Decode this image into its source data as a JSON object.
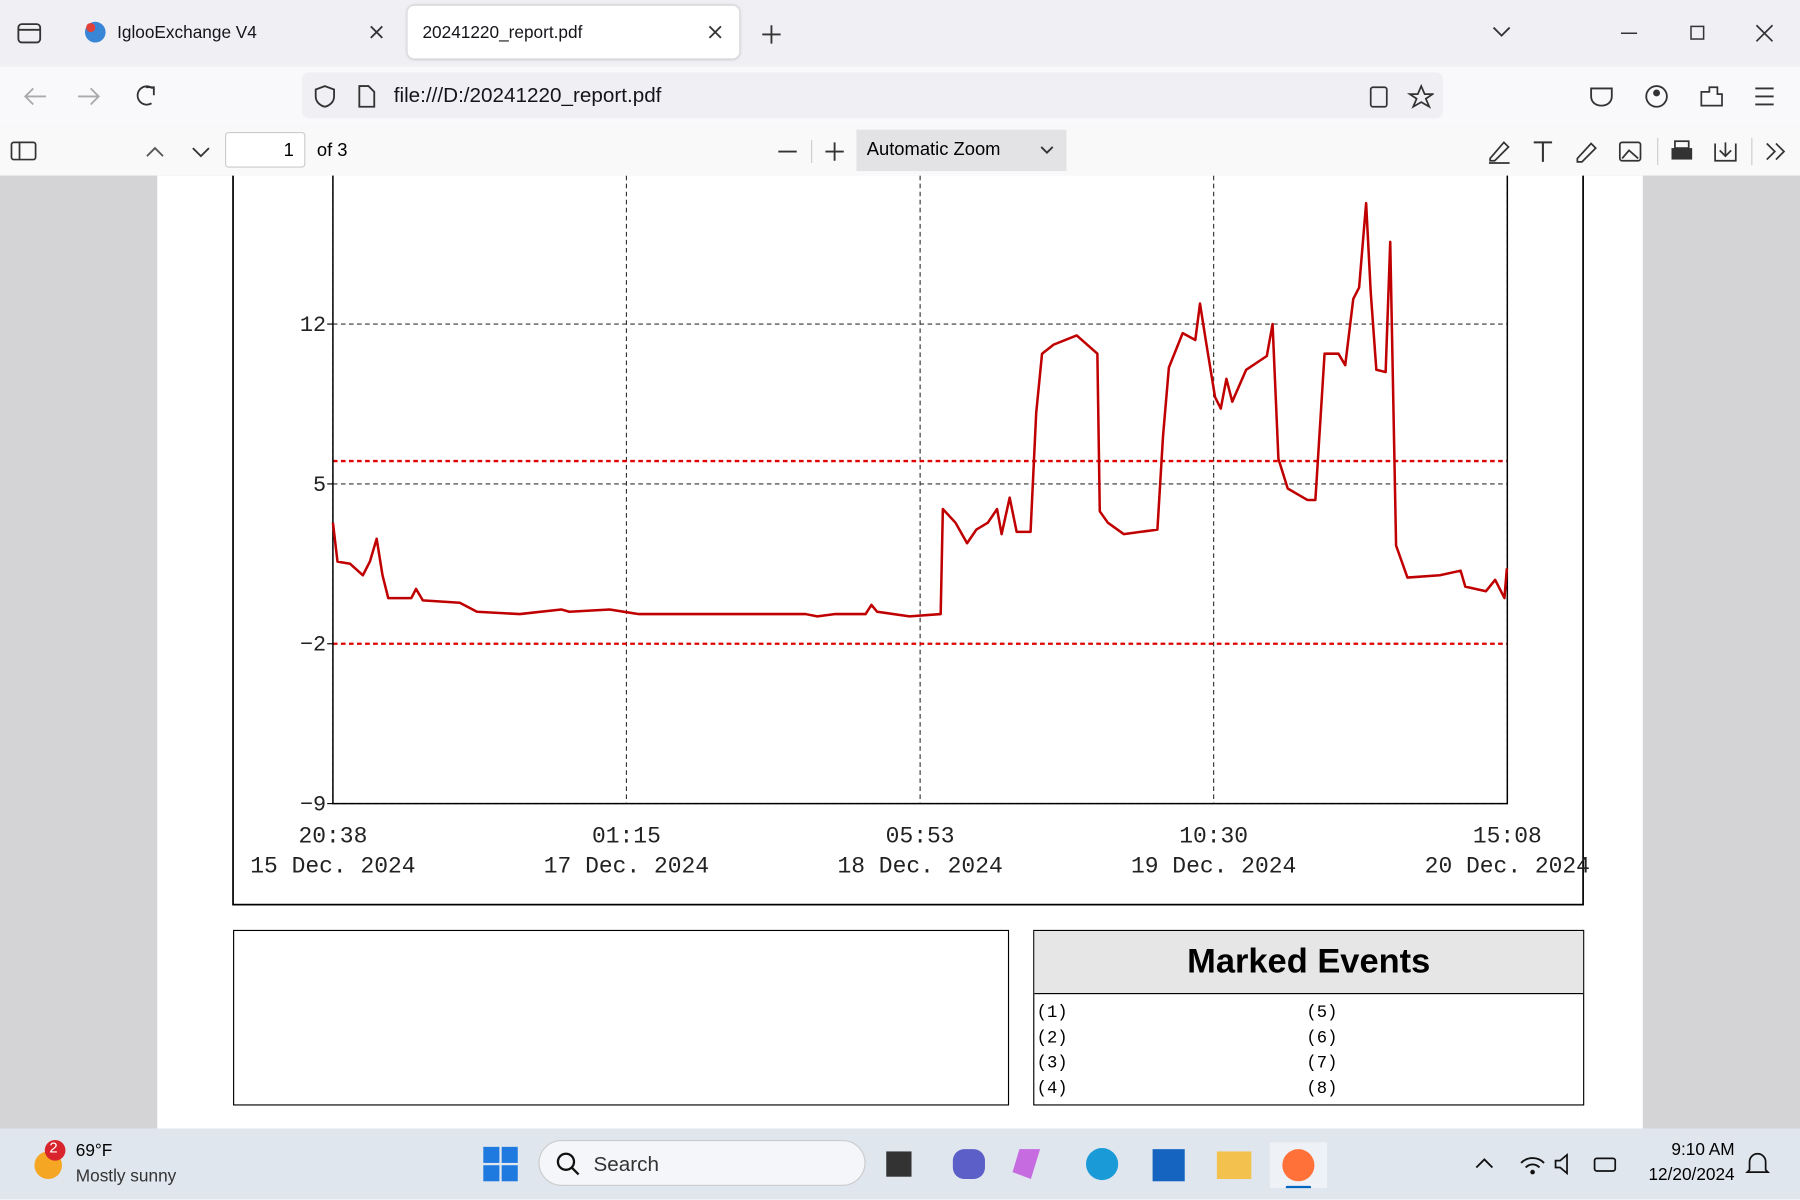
{
  "browser": {
    "tabs": [
      "IglooExchange V4",
      "20241220_report.pdf"
    ],
    "url": "file:///D:/20241220_report.pdf"
  },
  "pdf_toolbar": {
    "page": "1",
    "page_count": "of 3",
    "zoom": "Automatic Zoom"
  },
  "chart_data": {
    "type": "line",
    "series": [
      {
        "color": "#c00000",
        "x": [
          "2024-12-15 20:38",
          "2024-12-15 21:05",
          "2024-12-15 22:19",
          "2024-12-15 23:33",
          "2024-12-16 00:14",
          "2024-12-16 00:54",
          "2024-12-16 01:28",
          "2024-12-16 02:02",
          "2024-12-16 04:17",
          "2024-12-16 04:44",
          "2024-12-16 05:24",
          "2024-12-16 09:00",
          "2024-12-16 10:41",
          "2024-12-16 14:51",
          "2024-12-16 18:54",
          "2024-12-16 19:41",
          "2024-12-16 23:37",
          "2024-12-17 02:25",
          "2024-12-17 18:43",
          "2024-12-17 19:51",
          "2024-12-17 21:32",
          "2024-12-18 00:34",
          "2024-12-18 01:08",
          "2024-12-18 01:42",
          "2024-12-18 04:51",
          "2024-12-18 07:53",
          "2024-12-18 08:06",
          "2024-12-18 09:20",
          "2024-12-18 10:28",
          "2024-12-18 11:22",
          "2024-12-18 12:29",
          "2024-12-18 13:23",
          "2024-12-18 13:50",
          "2024-12-18 14:37",
          "2024-12-18 15:18",
          "2024-12-18 16:39",
          "2024-12-18 17:12",
          "2024-12-18 17:46",
          "2024-12-18 18:54",
          "2024-12-18 21:09",
          "2024-12-18 23:10",
          "2024-12-18 23:24",
          "2024-12-19 00:11",
          "2024-12-19 01:45",
          "2024-12-19 05:01",
          "2024-12-19 05:34",
          "2024-12-19 06:08",
          "2024-12-19 07:29",
          "2024-12-19 08:43",
          "2024-12-19 09:10",
          "2024-12-19 09:44",
          "2024-12-19 10:38",
          "2024-12-19 11:12",
          "2024-12-19 11:45",
          "2024-12-19 12:19",
          "2024-12-19 13:40",
          "2024-12-19 15:41",
          "2024-12-19 16:15",
          "2024-12-19 16:49",
          "2024-12-19 17:43",
          "2024-12-19 19:38",
          "2024-12-19 20:25",
          "2024-12-19 21:19",
          "2024-12-19 22:40",
          "2024-12-19 23:20",
          "2024-12-20 00:07",
          "2024-12-20 00:41",
          "2024-12-20 01:22",
          "2024-12-20 01:49",
          "2024-12-20 02:22",
          "2024-12-20 03:16",
          "2024-12-20 03:43",
          "2024-12-20 04:17",
          "2024-12-20 05:24",
          "2024-12-20 08:33",
          "2024-12-20 10:35",
          "2024-12-20 11:02",
          "2024-12-20 13:03",
          "2024-12-20 13:57",
          "2024-12-20 14:51",
          "2024-12-20 15:05"
        ],
        "values": [
          3.3,
          1.6,
          1.5,
          1.0,
          1.6,
          2.6,
          1.0,
          0.0,
          0.0,
          0.4,
          -0.1,
          -0.2,
          -0.6,
          -0.7,
          -0.5,
          -0.6,
          -0.5,
          -0.7,
          -0.7,
          -0.8,
          -0.7,
          -0.7,
          -0.3,
          -0.6,
          -0.8,
          -0.7,
          3.9,
          3.3,
          2.4,
          3.0,
          3.3,
          3.9,
          2.8,
          4.4,
          2.9,
          2.9,
          8.1,
          10.7,
          11.1,
          11.5,
          10.7,
          3.8,
          3.3,
          2.8,
          3.0,
          7.1,
          10.1,
          11.6,
          11.3,
          12.9,
          11.3,
          8.8,
          8.3,
          9.6,
          8.6,
          10.0,
          10.6,
          12.0,
          6.1,
          4.8,
          4.3,
          4.3,
          10.7,
          10.7,
          10.2,
          13.1,
          13.6,
          17.3,
          13.4,
          10.0,
          9.9,
          15.6,
          2.3,
          0.9,
          1.0,
          1.2,
          0.5,
          0.3,
          0.8,
          0.0,
          1.3
        ]
      }
    ],
    "xlim": [
      "2024-12-15 20:38",
      "2024-12-20 15:08"
    ],
    "xticks": [
      {
        "value": "2024-12-15 20:38",
        "label": [
          "20:38",
          "15 Dec. 2024"
        ]
      },
      {
        "value": "2024-12-17 01:15",
        "label": [
          "01:15",
          "17 Dec. 2024"
        ]
      },
      {
        "value": "2024-12-18 05:53",
        "label": [
          "05:53",
          "18 Dec. 2024"
        ]
      },
      {
        "value": "2024-12-19 10:30",
        "label": [
          "10:30",
          "19 Dec. 2024"
        ]
      },
      {
        "value": "2024-12-20 15:08",
        "label": [
          "15:08",
          "20 Dec. 2024"
        ]
      }
    ],
    "ylim": [
      -9,
      18.5
    ],
    "yticks": [
      {
        "value": -9,
        "label": "−9"
      },
      {
        "value": -2,
        "label": "−2"
      },
      5,
      12
    ],
    "grid": true,
    "thresholds": {
      "values": [
        6,
        -2
      ],
      "color": "#e00000"
    }
  },
  "marked_events": {
    "title": "Marked Events",
    "items": [
      "(1)",
      "(2)",
      "(3)",
      "(4)",
      "(5)",
      "(6)",
      "(7)",
      "(8)"
    ]
  },
  "taskbar": {
    "weather_badge": "2",
    "temperature": "69°F",
    "condition": "Mostly sunny",
    "search": "Search",
    "time": "9:10 AM",
    "date": "12/20/2024"
  }
}
